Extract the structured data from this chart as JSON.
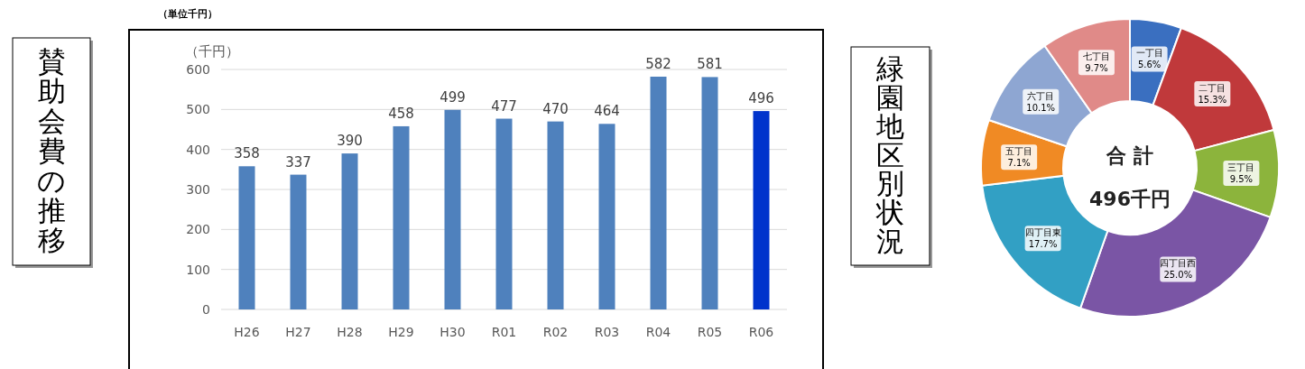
{
  "chart_data": [
    {
      "type": "bar",
      "title": "賛助会費の推移",
      "ylabel": "（千円）",
      "annotations": [
        "（単位千円）"
      ],
      "categories": [
        "H26",
        "H27",
        "H28",
        "H29",
        "H30",
        "R01",
        "R02",
        "R03",
        "R04",
        "R05",
        "R06"
      ],
      "values": [
        358,
        337,
        390,
        458,
        499,
        477,
        470,
        464,
        582,
        581,
        496
      ],
      "colors": [
        "#4f81bd",
        "#4f81bd",
        "#4f81bd",
        "#4f81bd",
        "#4f81bd",
        "#4f81bd",
        "#4f81bd",
        "#4f81bd",
        "#4f81bd",
        "#4f81bd",
        "#0033cc"
      ],
      "ylim": [
        0,
        600
      ],
      "yticks": [
        0,
        100,
        200,
        300,
        400,
        500,
        600
      ],
      "grid": "y",
      "data_labels": true
    },
    {
      "type": "donut",
      "title": "緑園地区別状況",
      "annotations": [
        "合 計",
        "496千円"
      ],
      "categories": [
        "一丁目",
        "二丁目",
        "三丁目",
        "四丁目西",
        "四丁目東",
        "五丁目",
        "六丁目",
        "七丁目"
      ],
      "values": [
        5.6,
        15.3,
        9.5,
        25.0,
        17.7,
        7.1,
        10.1,
        9.7
      ],
      "value_labels": [
        "5.6%",
        "15.3%",
        "9.5%",
        "25.0%",
        "17.7%",
        "7.1%",
        "10.1%",
        "9.7%"
      ],
      "colors": [
        "#3a6fc0",
        "#c0393b",
        "#8cb43c",
        "#7a55a5",
        "#32a0c4",
        "#f08a24",
        "#8ea6d2",
        "#e08a88"
      ]
    }
  ]
}
